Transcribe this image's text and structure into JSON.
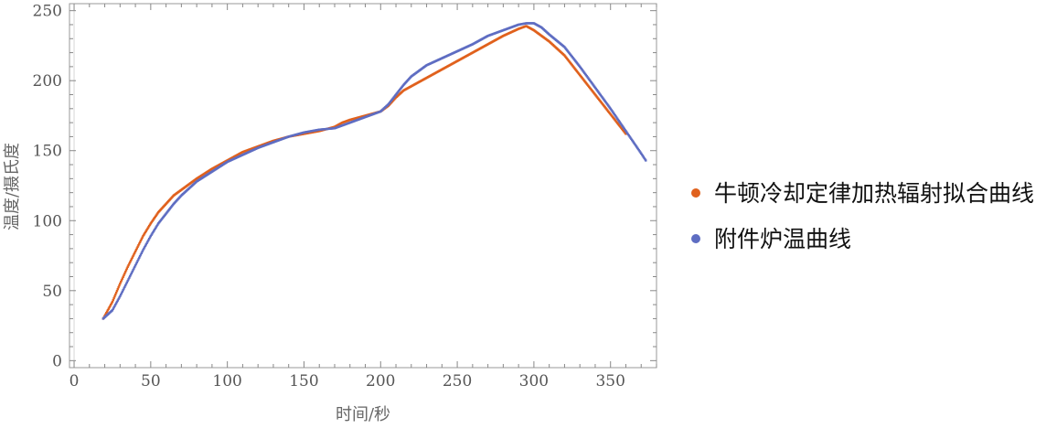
{
  "chart_data": {
    "type": "scatter",
    "xlabel": "时间/秒",
    "ylabel": "温度/摄氏度",
    "xlim": [
      -3,
      380
    ],
    "ylim": [
      -5,
      255
    ],
    "xticks": [
      0,
      50,
      100,
      150,
      200,
      250,
      300,
      350
    ],
    "yticks": [
      0,
      50,
      100,
      150,
      200,
      250
    ],
    "grid": false,
    "legend_position": "right",
    "series": [
      {
        "name": "牛顿冷却定律加热辐射拟合曲线",
        "color": "#E0611D",
        "points": [
          [
            19,
            30
          ],
          [
            25,
            42
          ],
          [
            30,
            55
          ],
          [
            35,
            67
          ],
          [
            40,
            78
          ],
          [
            45,
            89
          ],
          [
            50,
            98
          ],
          [
            55,
            106
          ],
          [
            60,
            112
          ],
          [
            65,
            118
          ],
          [
            70,
            122
          ],
          [
            75,
            126
          ],
          [
            80,
            130
          ],
          [
            90,
            137
          ],
          [
            100,
            143
          ],
          [
            110,
            149
          ],
          [
            120,
            153
          ],
          [
            130,
            157
          ],
          [
            140,
            160
          ],
          [
            150,
            162
          ],
          [
            160,
            164
          ],
          [
            170,
            167
          ],
          [
            175,
            170
          ],
          [
            180,
            172
          ],
          [
            190,
            175
          ],
          [
            200,
            178
          ],
          [
            205,
            182
          ],
          [
            210,
            188
          ],
          [
            215,
            193
          ],
          [
            220,
            196
          ],
          [
            230,
            202
          ],
          [
            240,
            208
          ],
          [
            250,
            214
          ],
          [
            260,
            220
          ],
          [
            270,
            226
          ],
          [
            280,
            232
          ],
          [
            290,
            237
          ],
          [
            295,
            239
          ],
          [
            300,
            236
          ],
          [
            310,
            228
          ],
          [
            320,
            218
          ],
          [
            330,
            204
          ],
          [
            340,
            190
          ],
          [
            350,
            176
          ],
          [
            360,
            162
          ]
        ]
      },
      {
        "name": "附件炉温曲线",
        "color": "#5E6DC2",
        "points": [
          [
            19,
            30
          ],
          [
            25,
            36
          ],
          [
            30,
            46
          ],
          [
            35,
            57
          ],
          [
            40,
            68
          ],
          [
            45,
            79
          ],
          [
            50,
            89
          ],
          [
            55,
            98
          ],
          [
            60,
            105
          ],
          [
            65,
            112
          ],
          [
            70,
            118
          ],
          [
            75,
            123
          ],
          [
            80,
            128
          ],
          [
            90,
            135
          ],
          [
            100,
            142
          ],
          [
            110,
            147
          ],
          [
            120,
            152
          ],
          [
            130,
            156
          ],
          [
            140,
            160
          ],
          [
            150,
            163
          ],
          [
            160,
            165
          ],
          [
            170,
            166
          ],
          [
            180,
            170
          ],
          [
            190,
            174
          ],
          [
            200,
            178
          ],
          [
            205,
            183
          ],
          [
            210,
            190
          ],
          [
            215,
            197
          ],
          [
            220,
            203
          ],
          [
            225,
            207
          ],
          [
            230,
            211
          ],
          [
            240,
            216
          ],
          [
            250,
            221
          ],
          [
            260,
            226
          ],
          [
            270,
            232
          ],
          [
            280,
            236
          ],
          [
            290,
            240
          ],
          [
            295,
            241
          ],
          [
            300,
            241
          ],
          [
            305,
            238
          ],
          [
            310,
            233
          ],
          [
            320,
            224
          ],
          [
            330,
            210
          ],
          [
            340,
            195
          ],
          [
            350,
            180
          ],
          [
            360,
            164
          ],
          [
            365,
            156
          ],
          [
            370,
            148
          ],
          [
            373,
            143
          ]
        ]
      }
    ]
  }
}
